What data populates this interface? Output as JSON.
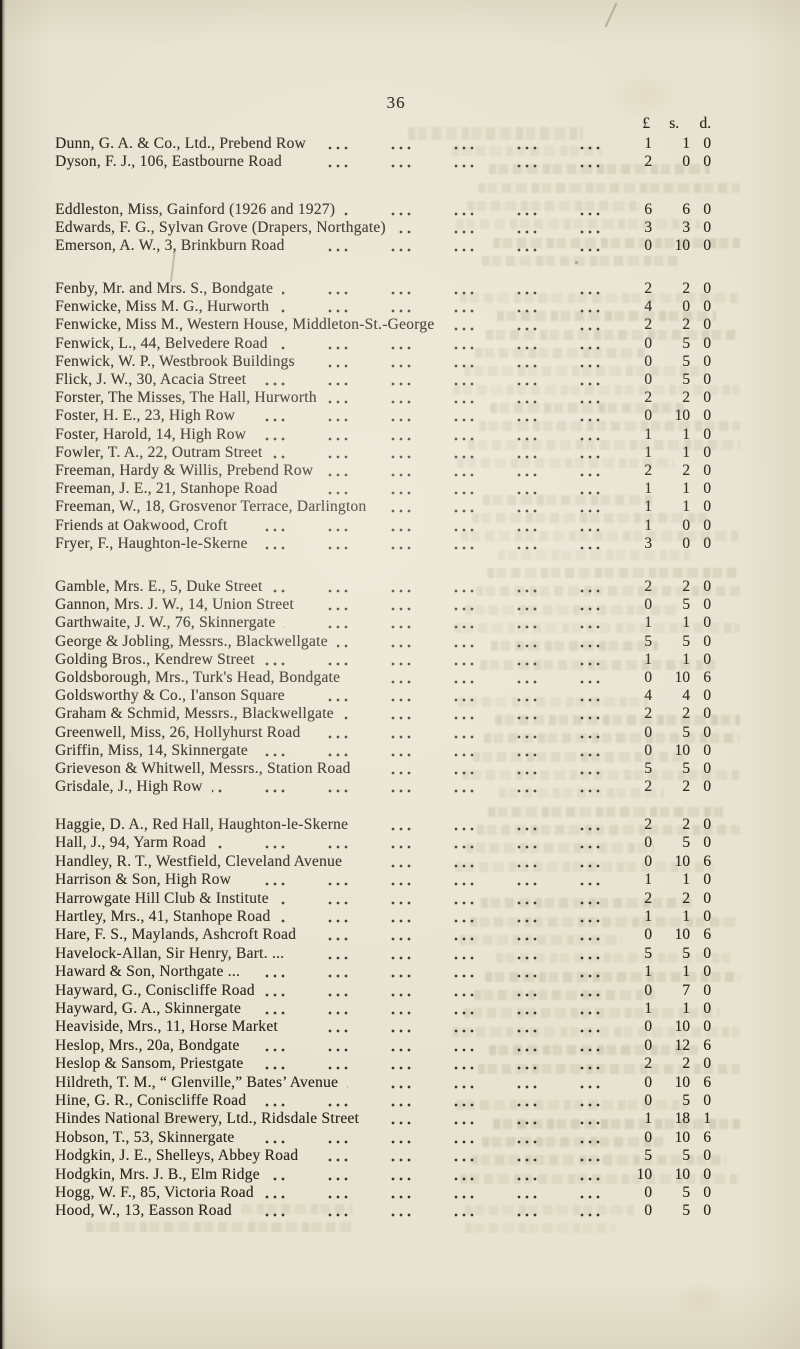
{
  "page": {
    "number": "36",
    "currency_columns": [
      "£",
      "s.",
      "d."
    ]
  },
  "subscription_list": {
    "groups": [
      {
        "entries": [
          {
            "name": "Dunn, G. A. & Co., Ltd., Prebend Row",
            "amount": [
              "1",
              "1",
              "0"
            ]
          },
          {
            "name": "Dyson, F. J., 106, Eastbourne Road",
            "amount": [
              "2",
              "0",
              "0"
            ]
          }
        ]
      },
      {
        "entries": [
          {
            "name": "Eddleston, Miss, Gainford (1926 and 1927)",
            "amount": [
              "6",
              "6",
              "0"
            ]
          },
          {
            "name": "Edwards, F. G., Sylvan Grove (Drapers, Northgate)",
            "amount": [
              "3",
              "3",
              "0"
            ]
          },
          {
            "name": "Emerson, A. W., 3, Brinkburn Road",
            "amount": [
              "0",
              "10",
              "0"
            ]
          }
        ]
      },
      {
        "entries": [
          {
            "name": "Fenby, Mr. and Mrs. S., Bondgate",
            "amount": [
              "2",
              "2",
              "0"
            ]
          },
          {
            "name": "Fenwicke, Miss M. G., Hurworth",
            "amount": [
              "4",
              "0",
              "0"
            ]
          },
          {
            "name": "Fenwicke, Miss M., Western House, Middleton-St.-George",
            "amount": [
              "2",
              "2",
              "0"
            ]
          },
          {
            "name": "Fenwick, L., 44, Belvedere Road",
            "amount": [
              "0",
              "5",
              "0"
            ]
          },
          {
            "name": "Fenwick, W. P., Westbrook Buildings",
            "amount": [
              "0",
              "5",
              "0"
            ]
          },
          {
            "name": "Flick, J. W., 30, Acacia Street",
            "amount": [
              "0",
              "5",
              "0"
            ]
          },
          {
            "name": "Forster, The Misses, The Hall, Hurworth",
            "amount": [
              "2",
              "2",
              "0"
            ]
          },
          {
            "name": "Foster, H. E., 23, High Row",
            "amount": [
              "0",
              "10",
              "0"
            ]
          },
          {
            "name": "Foster, Harold, 14, High Row",
            "amount": [
              "1",
              "1",
              "0"
            ]
          },
          {
            "name": "Fowler, T. A., 22, Outram Street",
            "amount": [
              "1",
              "1",
              "0"
            ]
          },
          {
            "name": "Freeman, Hardy & Willis, Prebend Row",
            "amount": [
              "2",
              "2",
              "0"
            ]
          },
          {
            "name": "Freeman, J. E., 21, Stanhope Road",
            "amount": [
              "1",
              "1",
              "0"
            ]
          },
          {
            "name": "Freeman, W., 18, Grosvenor Terrace, Darlington",
            "amount": [
              "1",
              "1",
              "0"
            ]
          },
          {
            "name": "Friends at Oakwood, Croft",
            "amount": [
              "1",
              "0",
              "0"
            ]
          },
          {
            "name": "Fryer, F., Haughton-le-Skerne",
            "amount": [
              "3",
              "0",
              "0"
            ]
          }
        ]
      },
      {
        "entries": [
          {
            "name": "Gamble, Mrs. E., 5, Duke Street",
            "amount": [
              "2",
              "2",
              "0"
            ]
          },
          {
            "name": "Gannon, Mrs. J. W., 14, Union Street",
            "amount": [
              "0",
              "5",
              "0"
            ]
          },
          {
            "name": "Garthwaite, J. W., 76, Skinnergate",
            "amount": [
              "1",
              "1",
              "0"
            ]
          },
          {
            "name": "George & Jobling, Messrs., Blackwellgate",
            "amount": [
              "5",
              "5",
              "0"
            ]
          },
          {
            "name": "Golding Bros., Kendrew Street",
            "amount": [
              "1",
              "1",
              "0"
            ]
          },
          {
            "name": "Goldsborough, Mrs., Turk's Head, Bondgate",
            "amount": [
              "0",
              "10",
              "6"
            ]
          },
          {
            "name": "Goldsworthy & Co., I'anson Square",
            "amount": [
              "4",
              "4",
              "0"
            ]
          },
          {
            "name": "Graham & Schmid, Messrs., Blackwellgate",
            "amount": [
              "2",
              "2",
              "0"
            ]
          },
          {
            "name": "Greenwell, Miss, 26, Hollyhurst Road",
            "amount": [
              "0",
              "5",
              "0"
            ]
          },
          {
            "name": "Griffin, Miss, 14, Skinnergate",
            "amount": [
              "0",
              "10",
              "0"
            ]
          },
          {
            "name": "Grieveson & Whitwell, Messrs., Station Road",
            "amount": [
              "5",
              "5",
              "0"
            ]
          },
          {
            "name": "Grisdale, J., High Row",
            "amount": [
              "2",
              "2",
              "0"
            ]
          }
        ]
      },
      {
        "entries": [
          {
            "name": "Haggie, D. A., Red Hall, Haughton-le-Skerne",
            "amount": [
              "2",
              "2",
              "0"
            ]
          },
          {
            "name": "Hall, J., 94, Yarm Road",
            "amount": [
              "0",
              "5",
              "0"
            ]
          },
          {
            "name": "Handley, R. T., Westfield, Cleveland Avenue",
            "amount": [
              "0",
              "10",
              "6"
            ]
          },
          {
            "name": "Harrison & Son, High Row",
            "amount": [
              "1",
              "1",
              "0"
            ]
          },
          {
            "name": "Harrowgate Hill Club & Institute",
            "amount": [
              "2",
              "2",
              "0"
            ]
          },
          {
            "name": "Hartley, Mrs., 41, Stanhope Road",
            "amount": [
              "1",
              "1",
              "0"
            ]
          },
          {
            "name": "Hare, F. S., Maylands, Ashcroft Road",
            "amount": [
              "0",
              "10",
              "6"
            ]
          },
          {
            "name": "Havelock-Allan, Sir Henry, Bart. ...",
            "amount": [
              "5",
              "5",
              "0"
            ]
          },
          {
            "name": "Haward & Son, Northgate ...",
            "amount": [
              "1",
              "1",
              "0"
            ]
          },
          {
            "name": "Hayward, G., Coniscliffe Road",
            "amount": [
              "0",
              "7",
              "0"
            ]
          },
          {
            "name": "Hayward, G. A., Skinnergate",
            "amount": [
              "1",
              "1",
              "0"
            ]
          },
          {
            "name": "Heaviside, Mrs., 11, Horse Market",
            "amount": [
              "0",
              "10",
              "0"
            ]
          },
          {
            "name": "Heslop, Mrs., 20a, Bondgate",
            "amount": [
              "0",
              "12",
              "6"
            ]
          },
          {
            "name": "Heslop & Sansom, Priestgate",
            "amount": [
              "2",
              "2",
              "0"
            ]
          },
          {
            "name": "Hildreth, T. M., “ Glenville,” Bates’ Avenue",
            "amount": [
              "0",
              "10",
              "6"
            ]
          },
          {
            "name": "Hine, G. R., Coniscliffe Road",
            "amount": [
              "0",
              "5",
              "0"
            ]
          },
          {
            "name": "Hindes National Brewery, Ltd., Ridsdale Street",
            "amount": [
              "1",
              "18",
              "1"
            ]
          },
          {
            "name": "Hobson, T., 53, Skinnergate",
            "amount": [
              "0",
              "10",
              "6"
            ]
          },
          {
            "name": "Hodgkin, J. E., Shelleys, Abbey Road",
            "amount": [
              "5",
              "5",
              "0"
            ]
          },
          {
            "name": "Hodgkin, Mrs. J. B., Elm Ridge",
            "amount": [
              "10",
              "10",
              "0"
            ]
          },
          {
            "name": "Hogg, W. F., 85, Victoria Road",
            "amount": [
              "0",
              "5",
              "0"
            ]
          },
          {
            "name": "Hood, W., 13, Easson Road",
            "amount": [
              "0",
              "5",
              "0"
            ]
          }
        ]
      }
    ]
  }
}
